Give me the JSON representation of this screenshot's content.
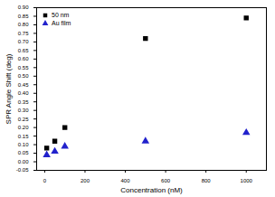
{
  "chart_data": {
    "type": "scatter",
    "x_label": "Concentration (nM)",
    "y_label": "SPR Angle Shift (deg)",
    "series": [
      {
        "name": "50 nm",
        "color": "#000000",
        "marker": "square",
        "x": [
          10,
          50,
          100,
          500,
          1000
        ],
        "values": [
          0.08,
          0.12,
          0.2,
          0.72,
          0.84
        ]
      },
      {
        "name": "Au film",
        "color": "#2222cc",
        "marker": "triangle",
        "x": [
          10,
          50,
          100,
          500,
          1000
        ],
        "values": [
          0.04,
          0.06,
          0.09,
          0.12,
          0.17
        ]
      }
    ],
    "xlim": [
      -40,
      1100
    ],
    "xticks": [
      0,
      200,
      400,
      600,
      800,
      1000
    ],
    "ylim": [
      -0.05,
      0.9
    ],
    "yticks": [
      -0.05,
      {
        "value": 0,
        "label": "0.00"
      },
      0.05,
      {
        "value": 0.1,
        "label": "0.10"
      },
      0.15,
      {
        "value": 0.2,
        "label": "0.20"
      },
      0.25,
      {
        "value": 0.3,
        "label": "0.30"
      },
      0.35,
      {
        "value": 0.4,
        "label": "0.40"
      },
      0.45,
      {
        "value": 0.5,
        "label": "0.50"
      },
      0.55,
      {
        "value": 0.6,
        "label": "0.60"
      },
      0.65,
      {
        "value": 0.7,
        "label": "0.70"
      },
      0.75,
      {
        "value": 0.8,
        "label": "0.80"
      },
      0.85,
      {
        "value": 0.9,
        "label": "0.90"
      }
    ],
    "legend": "top-left",
    "grid": false
  }
}
